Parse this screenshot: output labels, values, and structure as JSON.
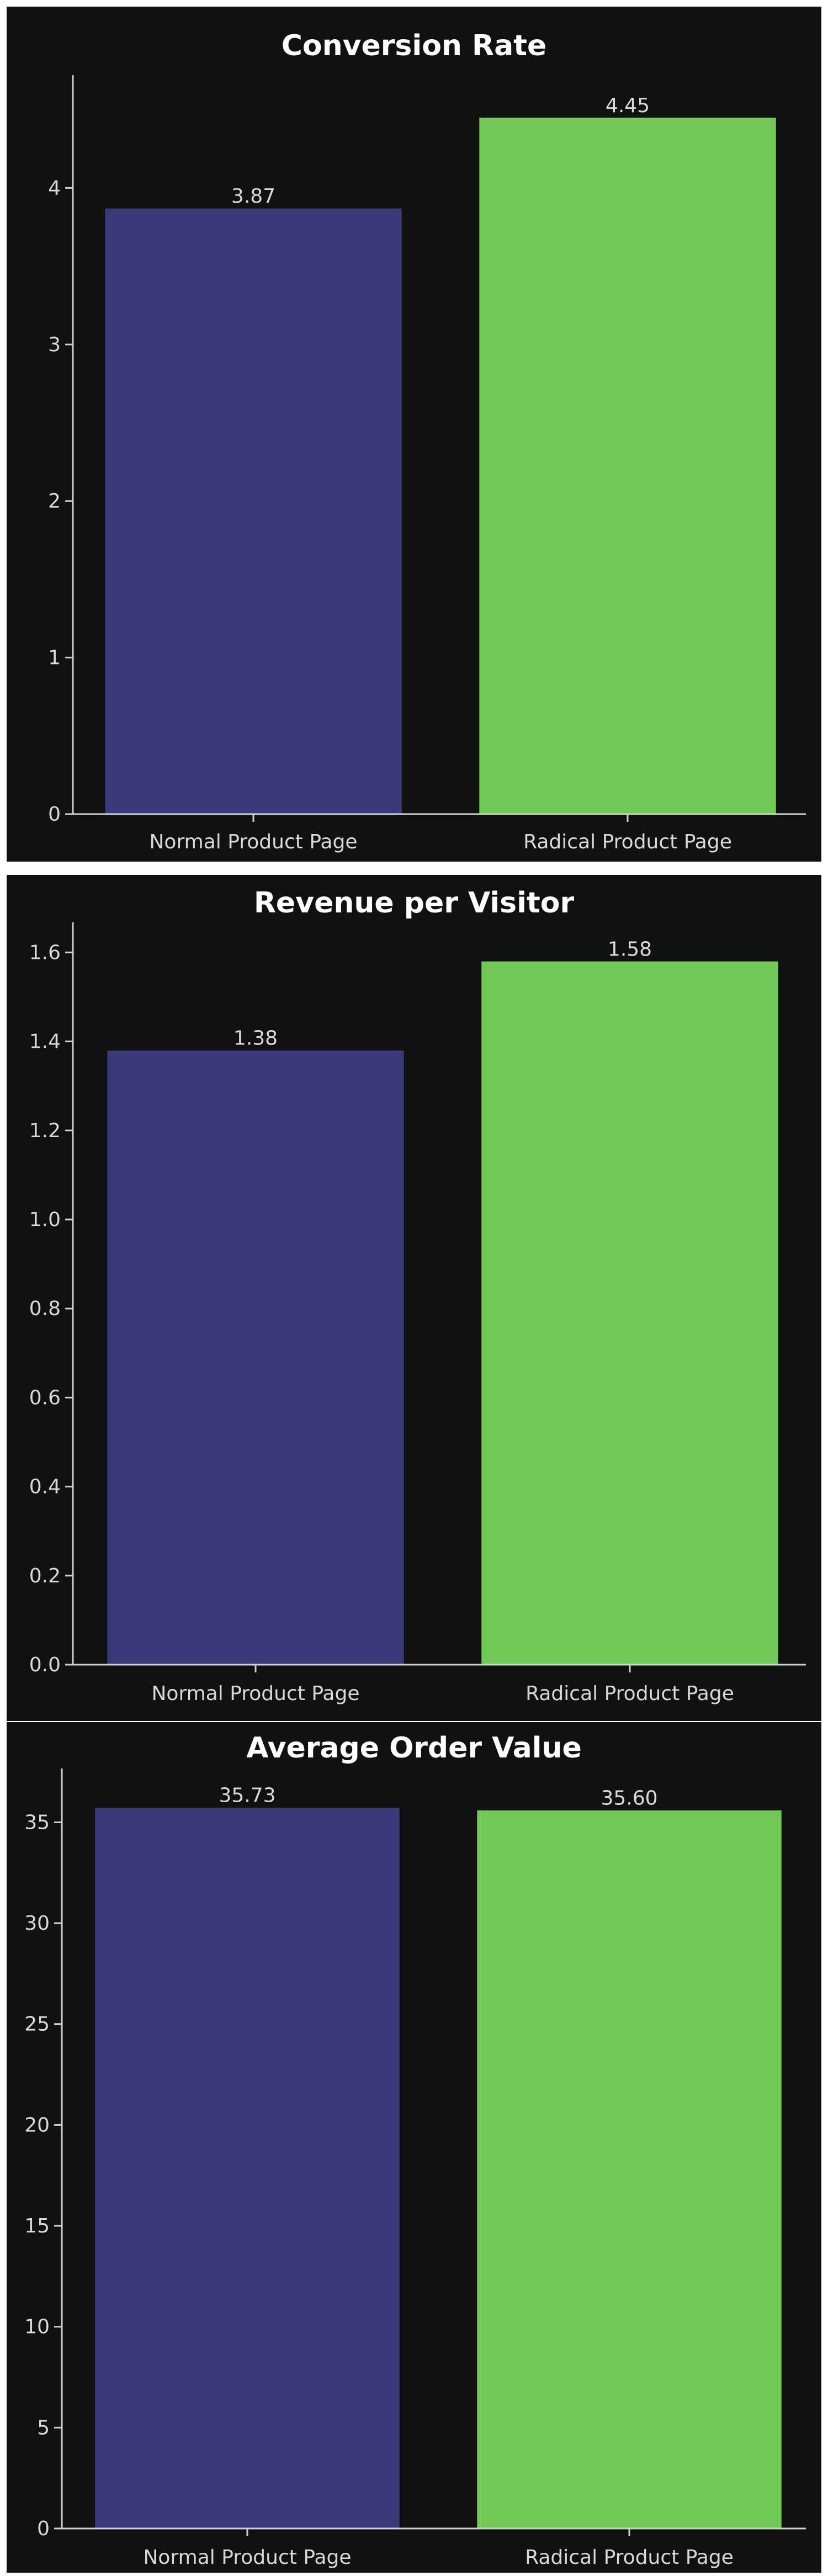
{
  "colors": {
    "background": "#111111",
    "normal_bar": "#3a3a78",
    "radical_bar": "#72c957",
    "text": "#d9d9d9",
    "title": "#ffffff"
  },
  "chart_data": [
    {
      "type": "bar",
      "title": "Conversion Rate",
      "xlabel": "",
      "ylabel": "",
      "categories": [
        "Normal Product Page",
        "Radical Product Page"
      ],
      "values": [
        3.87,
        4.45
      ],
      "value_labels": [
        "3.87",
        "4.45"
      ],
      "ylim": [
        0,
        4.7
      ],
      "yticks": [
        0,
        1,
        2,
        3,
        4
      ],
      "ytick_labels": [
        "0",
        "1",
        "2",
        "3",
        "4"
      ],
      "colors": [
        "#3a3a78",
        "#72c957"
      ],
      "grid": false
    },
    {
      "type": "bar",
      "title": "Revenue per Visitor",
      "xlabel": "",
      "ylabel": "",
      "categories": [
        "Normal Product Page",
        "Radical Product Page"
      ],
      "values": [
        1.38,
        1.58
      ],
      "value_labels": [
        "1.38",
        "1.58"
      ],
      "ylim": [
        0,
        1.66
      ],
      "yticks": [
        0,
        0.2,
        0.4,
        0.6,
        0.8,
        1.0,
        1.2,
        1.4,
        1.6
      ],
      "ytick_labels": [
        "0.0",
        "0.2",
        "0.4",
        "0.6",
        "0.8",
        "1.0",
        "1.2",
        "1.4",
        "1.6"
      ],
      "colors": [
        "#3a3a78",
        "#72c957"
      ],
      "grid": false
    },
    {
      "type": "bar",
      "title": "Average Order Value",
      "xlabel": "",
      "ylabel": "",
      "categories": [
        "Normal Product Page",
        "Radical Product Page"
      ],
      "values": [
        35.73,
        35.6
      ],
      "value_labels": [
        "35.73",
        "35.60"
      ],
      "ylim": [
        0,
        37.5
      ],
      "yticks": [
        0,
        5,
        10,
        15,
        20,
        25,
        30,
        35
      ],
      "ytick_labels": [
        "0",
        "5",
        "10",
        "15",
        "20",
        "25",
        "30",
        "35"
      ],
      "colors": [
        "#3a3a78",
        "#72c957"
      ],
      "grid": false
    }
  ]
}
